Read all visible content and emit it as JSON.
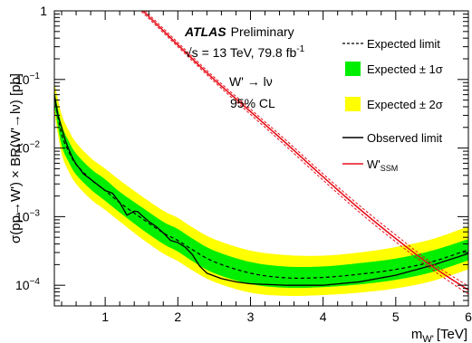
{
  "chart_data": {
    "type": "line",
    "xlabel": "m",
    "xlabel_sub": "W'",
    "xlabel_unit": "[TeV]",
    "ylabel": "σ(pp→W') × BR(W'→lν) [pb]",
    "xlim": [
      0.3,
      6.0
    ],
    "ylim": [
      5e-05,
      1
    ],
    "yscale": "log",
    "x_ticks": [
      1,
      2,
      3,
      4,
      5,
      6
    ],
    "x_tick_labels": [
      "1",
      "2",
      "3",
      "4",
      "5",
      "6"
    ],
    "y_ticks": [
      0.0001,
      0.001,
      0.01,
      0.1,
      1
    ],
    "y_tick_labels": [
      {
        "base": "10",
        "exp": "−4"
      },
      {
        "base": "10",
        "exp": "−3"
      },
      {
        "base": "10",
        "exp": "−2"
      },
      {
        "base": "10",
        "exp": "−1"
      },
      {
        "base": "1",
        "exp": ""
      }
    ],
    "annotations": {
      "atlas": "ATLAS",
      "preliminary": "Preliminary",
      "energy_lumi": "√s = 13 TeV, 79.8 fb",
      "energy_lumi_sup": "-1",
      "channel": "W' → lν",
      "cl": "95% CL"
    },
    "legend": {
      "placement": "top-right",
      "expected": "Expected limit",
      "band1": "Expected ± 1σ",
      "band2": "Expected ± 2σ",
      "observed": "Observed limit",
      "theory": "W'",
      "theory_sub": "SSM"
    },
    "colors": {
      "band2": "#ffff00",
      "band1": "#00ee00",
      "observed": "#000000",
      "expected": "#000000",
      "theory": "#e8101a"
    },
    "series": [
      {
        "name": "Expected limit",
        "style": "dashed",
        "x": [
          0.3,
          0.4,
          0.5,
          0.6,
          0.8,
          1.0,
          1.2,
          1.5,
          1.8,
          2.0,
          2.2,
          2.5,
          3.0,
          3.5,
          4.0,
          4.5,
          5.0,
          5.5,
          6.0
        ],
        "values": [
          0.055,
          0.016,
          0.0088,
          0.0058,
          0.0035,
          0.0024,
          0.0016,
          0.00095,
          0.00058,
          0.00045,
          0.00033,
          0.00022,
          0.00015,
          0.000128,
          0.00013,
          0.000145,
          0.00017,
          0.00022,
          0.00033
        ]
      },
      {
        "name": "Expected ± 1σ",
        "x": [
          0.3,
          0.4,
          0.5,
          0.6,
          0.8,
          1.0,
          1.2,
          1.5,
          1.8,
          2.0,
          2.2,
          2.5,
          3.0,
          3.5,
          4.0,
          4.5,
          5.0,
          5.5,
          6.0
        ],
        "low": [
          0.042,
          0.011,
          0.0062,
          0.0041,
          0.0025,
          0.0017,
          0.00115,
          0.00066,
          0.0004,
          0.00031,
          0.000225,
          0.00015,
          0.000104,
          9.2e-05,
          9.4e-05,
          0.000103,
          0.00012,
          0.000155,
          0.00023
        ],
        "high": [
          0.068,
          0.022,
          0.0125,
          0.0083,
          0.005,
          0.0035,
          0.0023,
          0.00138,
          0.00084,
          0.00066,
          0.00048,
          0.00032,
          0.000218,
          0.000187,
          0.000188,
          0.00021,
          0.000245,
          0.00032,
          0.00047
        ]
      },
      {
        "name": "Expected ± 2σ",
        "x": [
          0.3,
          0.4,
          0.5,
          0.6,
          0.8,
          1.0,
          1.2,
          1.5,
          1.8,
          2.0,
          2.2,
          2.5,
          3.0,
          3.5,
          4.0,
          4.5,
          5.0,
          5.5,
          6.0
        ],
        "low": [
          0.033,
          0.0083,
          0.0045,
          0.003,
          0.0018,
          0.00125,
          0.00085,
          0.00048,
          0.00029,
          0.000225,
          0.000165,
          0.000112,
          7.8e-05,
          7e-05,
          7.2e-05,
          7.8e-05,
          9e-05,
          0.000115,
          0.00017
        ],
        "high": [
          0.09,
          0.031,
          0.018,
          0.012,
          0.0072,
          0.005,
          0.0034,
          0.002,
          0.00122,
          0.00096,
          0.0007,
          0.00047,
          0.00032,
          0.000275,
          0.00027,
          0.0003,
          0.00036,
          0.00047,
          0.00072
        ]
      },
      {
        "name": "Observed limit",
        "style": "solid",
        "x": [
          0.3,
          0.35,
          0.4,
          0.45,
          0.5,
          0.55,
          0.6,
          0.65,
          0.7,
          0.8,
          0.9,
          1.0,
          1.1,
          1.2,
          1.3,
          1.4,
          1.45,
          1.5,
          1.6,
          1.7,
          1.8,
          1.9,
          2.0,
          2.1,
          2.2,
          2.3,
          2.4,
          2.6,
          2.8,
          3.0,
          3.5,
          4.0,
          4.5,
          5.0,
          5.5,
          6.0
        ],
        "values": [
          0.06,
          0.03,
          0.02,
          0.013,
          0.0095,
          0.0072,
          0.0058,
          0.005,
          0.0042,
          0.0035,
          0.0029,
          0.0024,
          0.0022,
          0.0016,
          0.00105,
          0.0012,
          0.00118,
          0.00105,
          0.00085,
          0.00072,
          0.00058,
          0.00045,
          0.00042,
          0.00036,
          0.00028,
          0.00019,
          0.00015,
          0.000125,
          0.000112,
          0.000105,
          0.0001,
          0.0001,
          0.000112,
          0.00014,
          0.000195,
          0.00029
        ]
      },
      {
        "name": "W'SSM",
        "style": "solid",
        "x": [
          1.5,
          2.0,
          2.5,
          3.0,
          3.5,
          4.0,
          4.5,
          5.0,
          5.5,
          6.0
        ],
        "values": [
          1.05,
          0.32,
          0.1,
          0.034,
          0.0115,
          0.0038,
          0.0013,
          0.00048,
          0.00019,
          8.5e-05
        ],
        "band_low": [
          0.98,
          0.3,
          0.093,
          0.031,
          0.0104,
          0.0034,
          0.00116,
          0.00043,
          0.00017,
          7.4e-05
        ],
        "band_high": [
          1.13,
          0.345,
          0.108,
          0.037,
          0.0127,
          0.0042,
          0.00145,
          0.00054,
          0.00021,
          9.7e-05
        ]
      }
    ]
  }
}
